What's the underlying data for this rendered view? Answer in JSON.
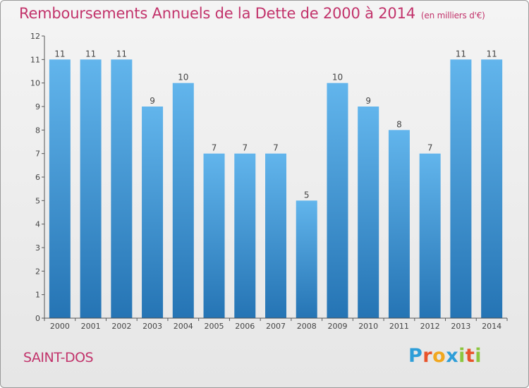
{
  "title": "Remboursements Annuels de la Dette de 2000 à 2014",
  "unit": "(en milliers d'€)",
  "commune": "SAINT-DOS",
  "logo": {
    "letters": [
      "P",
      "r",
      "o",
      "x",
      "i",
      "t",
      "i"
    ],
    "colors": [
      "#2e9ed8",
      "#e8532b",
      "#f1a71f",
      "#2e9ed8",
      "#8cc63f",
      "#e8532b",
      "#8cc63f"
    ]
  },
  "chart_data": {
    "type": "bar",
    "categories": [
      "2000",
      "2001",
      "2002",
      "2003",
      "2004",
      "2005",
      "2006",
      "2007",
      "2008",
      "2009",
      "2010",
      "2011",
      "2012",
      "2013",
      "2014"
    ],
    "values": [
      11,
      11,
      11,
      9,
      10,
      7,
      7,
      7,
      5,
      10,
      9,
      8,
      7,
      11,
      11
    ],
    "ylim": [
      0,
      12
    ],
    "yticks": [
      0,
      1,
      2,
      3,
      4,
      5,
      6,
      7,
      8,
      9,
      10,
      11,
      12
    ],
    "grid": false,
    "colors": {
      "bar_light": "#62b5ec",
      "bar_dark": "#2574b4",
      "axis": "#555555",
      "label": "#444444"
    }
  }
}
